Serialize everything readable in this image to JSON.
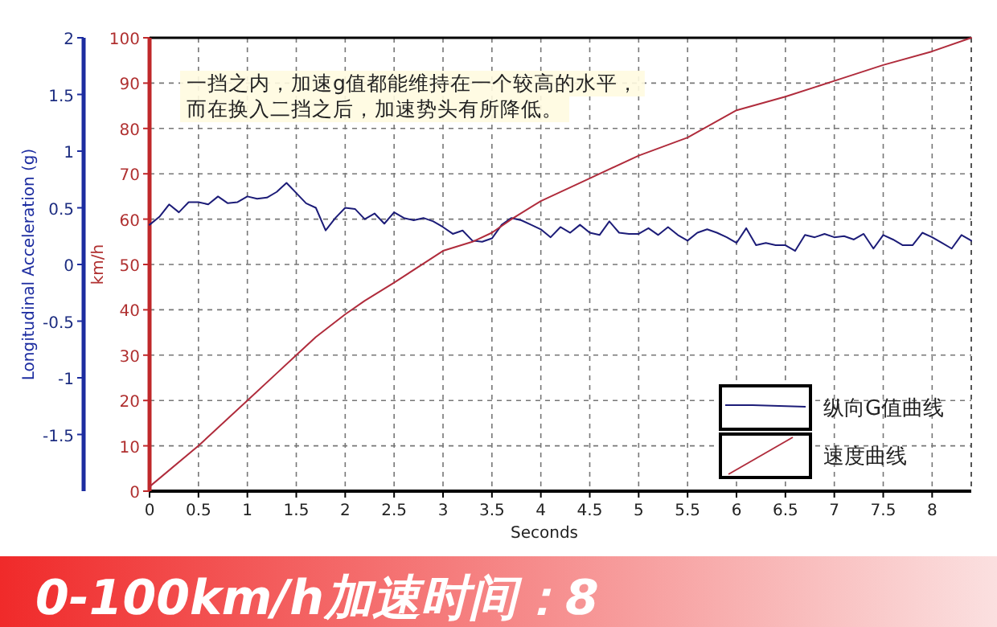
{
  "chart_data": {
    "type": "line",
    "title": "0-100km/h加速时间：8",
    "xlabel": "Seconds",
    "ylabel": "km/h",
    "y2label": "Longitudinal Acceleration (g)",
    "annotations": [
      "一挡之内，加速g值都能维持在一个较高的水平，",
      "而在换入二挡之后，加速势头有所降低。"
    ],
    "xlim": [
      0,
      8.4
    ],
    "xticks": [
      0,
      0.5,
      1,
      1.5,
      2,
      2.5,
      3,
      3.5,
      4,
      4.5,
      5,
      5.5,
      6,
      6.5,
      7,
      7.5,
      8
    ],
    "ylim": [
      0,
      100
    ],
    "yticks": [
      0,
      10,
      20,
      30,
      40,
      50,
      60,
      70,
      80,
      90,
      100
    ],
    "y2lim": [
      -2,
      2
    ],
    "y2ticks": [
      -1.5,
      -1,
      -0.5,
      0,
      0.5,
      1,
      1.5,
      2
    ],
    "grid": true,
    "legend": "bottom right",
    "series": [
      {
        "name": "纵向G值曲线",
        "color": "#1c1c78",
        "axis": "y2",
        "x": [
          0,
          0.1,
          0.2,
          0.3,
          0.4,
          0.5,
          0.6,
          0.7,
          0.8,
          0.9,
          1,
          1.1,
          1.2,
          1.3,
          1.4,
          1.5,
          1.6,
          1.7,
          1.8,
          1.9,
          2,
          2.1,
          2.2,
          2.3,
          2.4,
          2.5,
          2.6,
          2.7,
          2.8,
          2.9,
          3,
          3.1,
          3.2,
          3.3,
          3.4,
          3.5,
          3.6,
          3.7,
          3.8,
          3.9,
          4,
          4.1,
          4.2,
          4.3,
          4.4,
          4.5,
          4.6,
          4.7,
          4.8,
          4.9,
          5,
          5.1,
          5.2,
          5.3,
          5.4,
          5.5,
          5.6,
          5.7,
          5.8,
          5.9,
          6,
          6.1,
          6.2,
          6.3,
          6.4,
          6.5,
          6.6,
          6.7,
          6.8,
          6.9,
          7,
          7.1,
          7.2,
          7.3,
          7.4,
          7.5,
          7.6,
          7.7,
          7.8,
          7.9,
          8,
          8.1,
          8.2,
          8.3,
          8.4
        ],
        "values": [
          0.35,
          0.42,
          0.53,
          0.46,
          0.55,
          0.55,
          0.53,
          0.6,
          0.54,
          0.55,
          0.6,
          0.58,
          0.59,
          0.64,
          0.72,
          0.63,
          0.54,
          0.5,
          0.3,
          0.41,
          0.5,
          0.49,
          0.4,
          0.45,
          0.36,
          0.46,
          0.41,
          0.39,
          0.41,
          0.38,
          0.33,
          0.27,
          0.3,
          0.21,
          0.2,
          0.23,
          0.35,
          0.41,
          0.39,
          0.35,
          0.31,
          0.24,
          0.33,
          0.28,
          0.35,
          0.28,
          0.26,
          0.38,
          0.28,
          0.27,
          0.27,
          0.32,
          0.26,
          0.33,
          0.26,
          0.21,
          0.28,
          0.31,
          0.28,
          0.24,
          0.19,
          0.32,
          0.17,
          0.19,
          0.17,
          0.17,
          0.12,
          0.26,
          0.24,
          0.27,
          0.24,
          0.25,
          0.22,
          0.27,
          0.14,
          0.26,
          0.22,
          0.17,
          0.17,
          0.28,
          0.24,
          0.19,
          0.14,
          0.26,
          0.21
        ]
      },
      {
        "name": "速度曲线",
        "color": "#b02c3c",
        "x": [
          0,
          0.5,
          1,
          1.3,
          1.5,
          1.7,
          2,
          2.2,
          2.5,
          3,
          3.3,
          3.5,
          3.7,
          4,
          4.5,
          5,
          5.5,
          6,
          6.5,
          7,
          7.5,
          8,
          8.4
        ],
        "values": [
          1,
          10,
          20,
          26,
          30,
          34,
          39,
          42,
          46,
          53,
          55,
          57,
          60,
          64,
          69,
          74,
          78,
          84,
          87,
          90.5,
          94,
          97,
          100
        ]
      }
    ]
  }
}
